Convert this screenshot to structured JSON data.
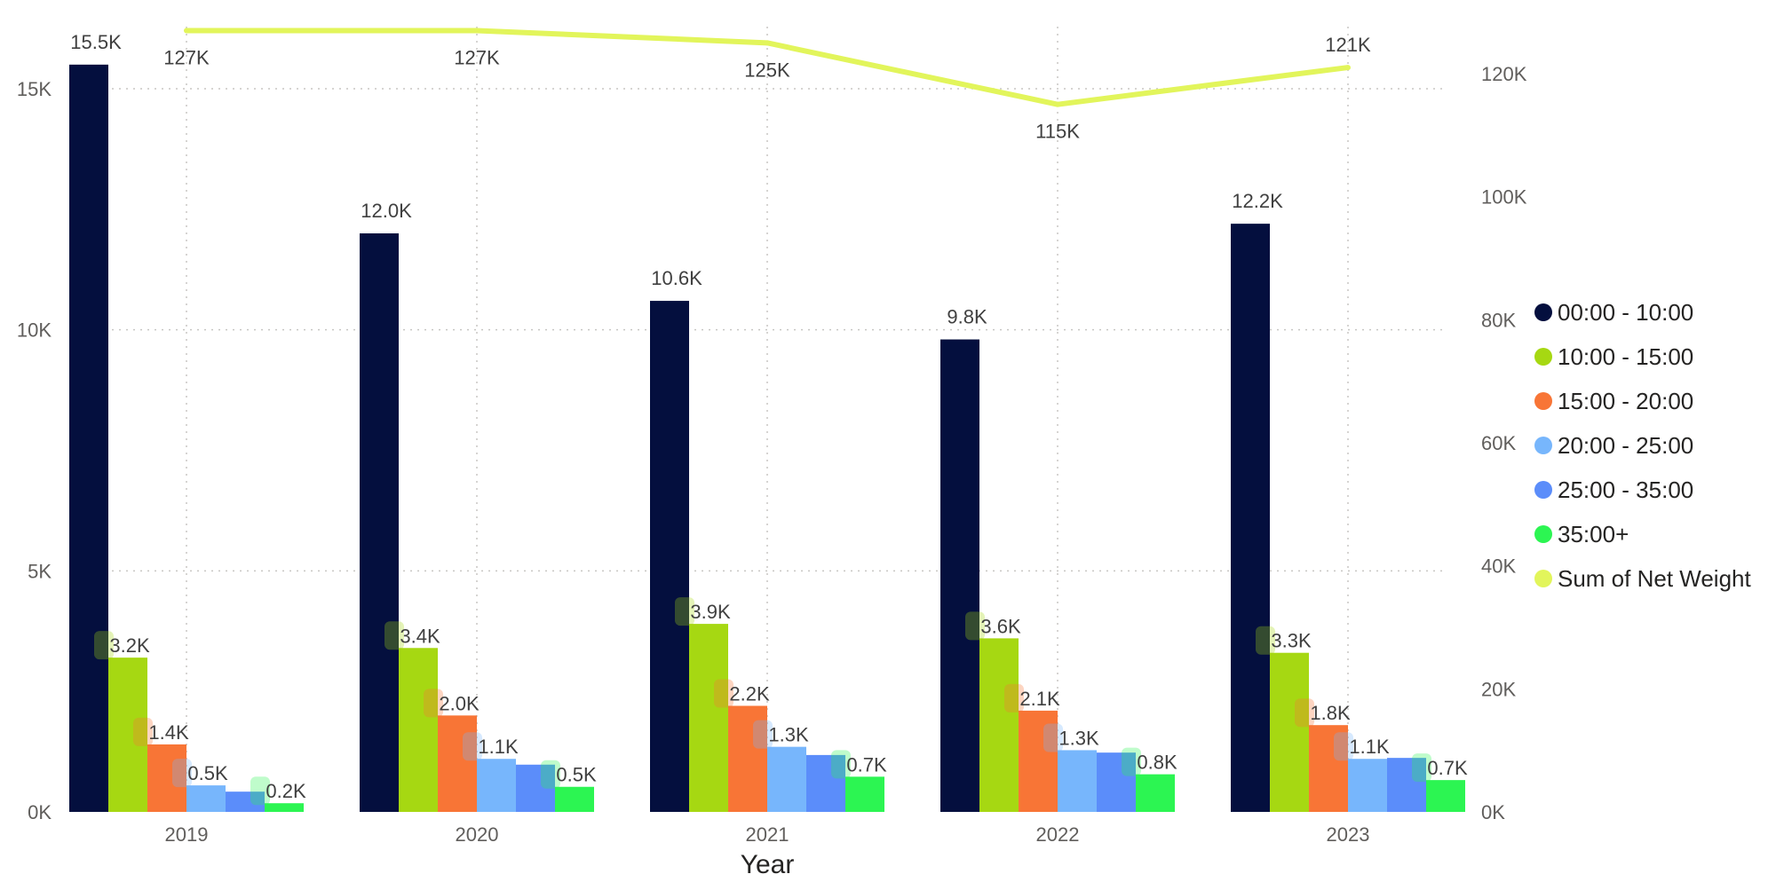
{
  "chart_data": {
    "type": "bar",
    "title": "",
    "xlabel": "Year",
    "categories": [
      "2019",
      "2020",
      "2021",
      "2022",
      "2023"
    ],
    "y_left": {
      "min": 0,
      "max": 15500,
      "ticks": [
        0,
        5000,
        10000,
        15000
      ],
      "tick_labels": [
        "0K",
        "5K",
        "10K",
        "15K"
      ]
    },
    "y_right": {
      "min": 0,
      "max": 127500,
      "ticks": [
        0,
        20000,
        40000,
        60000,
        80000,
        100000,
        120000
      ],
      "tick_labels": [
        "0K",
        "20K",
        "40K",
        "60K",
        "80K",
        "100K",
        "120K"
      ]
    },
    "grid": true,
    "legend_position": "right",
    "series": [
      {
        "name": "00:00 - 10:00",
        "color": "#040f3e",
        "values": [
          15500,
          12000,
          10600,
          9800,
          12200
        ],
        "labels": [
          "15.5K",
          "12.0K",
          "10.6K",
          "9.8K",
          "12.2K"
        ]
      },
      {
        "name": "10:00 - 15:00",
        "color": "#a6d812",
        "values": [
          3200,
          3400,
          3900,
          3600,
          3300
        ],
        "labels": [
          "3.2K",
          "3.4K",
          "3.9K",
          "3.6K",
          "3.3K"
        ]
      },
      {
        "name": "15:00 - 20:00",
        "color": "#f87536",
        "values": [
          1400,
          2000,
          2200,
          2100,
          1800
        ],
        "labels": [
          "1.4K",
          "2.0K",
          "2.2K",
          "2.1K",
          "1.8K"
        ]
      },
      {
        "name": "20:00 - 25:00",
        "color": "#77b6fc",
        "values": [
          550,
          1100,
          1350,
          1280,
          1100
        ],
        "labels": [
          "0.5K",
          "1.1K",
          "1.3K",
          "1.3K",
          "1.1K"
        ]
      },
      {
        "name": "25:00 - 35:00",
        "color": "#5b8dfa",
        "values": [
          420,
          980,
          1180,
          1230,
          1120
        ],
        "labels": [
          "",
          "",
          "",
          "",
          ""
        ]
      },
      {
        "name": "35:00+",
        "color": "#2cf552",
        "values": [
          180,
          520,
          730,
          780,
          660
        ],
        "labels": [
          "0.2K",
          "0.5K",
          "0.7K",
          "0.8K",
          "0.7K"
        ]
      }
    ],
    "line_series": {
      "name": "Sum of Net   Weight",
      "color": "#e2f55b",
      "axis": "right",
      "values": [
        127000,
        127000,
        125000,
        115000,
        121000
      ],
      "labels": [
        "127K",
        "127K",
        "125K",
        "115K",
        "121K"
      ]
    }
  }
}
